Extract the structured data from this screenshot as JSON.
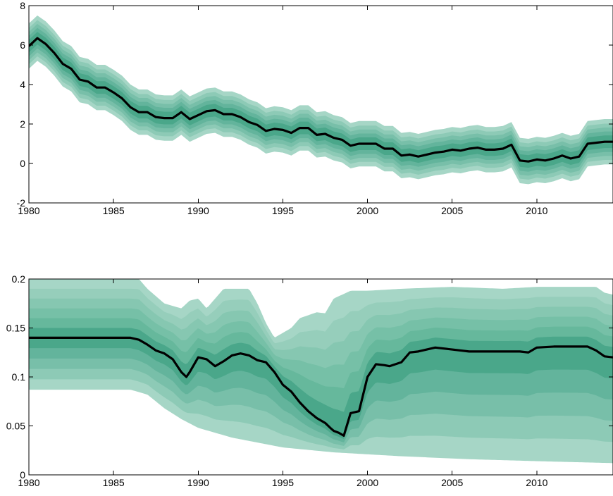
{
  "chart_data": [
    {
      "type": "area",
      "xlim": [
        1980,
        2014.5
      ],
      "ylim": [
        -2,
        8
      ],
      "x_ticks": [
        1980,
        1985,
        1990,
        1995,
        2000,
        2005,
        2010
      ],
      "y_ticks": [
        -2,
        0,
        2,
        4,
        6,
        8
      ],
      "band_halfwidths": [
        0.32,
        0.52,
        0.72,
        0.92,
        1.15
      ],
      "median": {
        "x": [
          1980,
          1980.5,
          1981,
          1981.5,
          1982,
          1982.5,
          1983,
          1983.5,
          1984,
          1984.5,
          1985,
          1985.5,
          1986,
          1986.5,
          1987,
          1987.5,
          1988,
          1988.5,
          1989,
          1989.5,
          1990,
          1990.5,
          1991,
          1991.5,
          1992,
          1992.5,
          1993,
          1993.5,
          1994,
          1994.5,
          1995,
          1995.5,
          1996,
          1996.5,
          1997,
          1997.5,
          1998,
          1998.5,
          1999,
          1999.5,
          2000,
          2000.5,
          2001,
          2001.5,
          2002,
          2002.5,
          2003,
          2003.5,
          2004,
          2004.5,
          2005,
          2005.5,
          2006,
          2006.5,
          2007,
          2007.5,
          2008,
          2008.5,
          2009,
          2009.5,
          2010,
          2010.5,
          2011,
          2011.5,
          2012,
          2012.5,
          2013,
          2013.5,
          2014,
          2014.5
        ],
        "y": [
          5.95,
          6.35,
          6.05,
          5.6,
          5.05,
          4.8,
          4.25,
          4.15,
          3.85,
          3.85,
          3.6,
          3.3,
          2.85,
          2.6,
          2.6,
          2.35,
          2.3,
          2.3,
          2.6,
          2.25,
          2.45,
          2.65,
          2.7,
          2.5,
          2.5,
          2.35,
          2.1,
          1.95,
          1.65,
          1.75,
          1.7,
          1.55,
          1.8,
          1.8,
          1.45,
          1.5,
          1.3,
          1.2,
          0.9,
          1.0,
          1.0,
          1.0,
          0.75,
          0.75,
          0.4,
          0.45,
          0.35,
          0.45,
          0.55,
          0.6,
          0.7,
          0.65,
          0.75,
          0.8,
          0.7,
          0.7,
          0.75,
          0.95,
          0.15,
          0.1,
          0.2,
          0.15,
          0.25,
          0.4,
          0.25,
          0.35,
          1.0,
          1.05,
          1.1,
          1.1
        ]
      }
    },
    {
      "type": "area",
      "xlim": [
        1980,
        2014.5
      ],
      "ylim": [
        0,
        0.2
      ],
      "x_ticks": [
        1980,
        1985,
        1990,
        1995,
        2000,
        2005,
        2010
      ],
      "y_ticks": [
        0,
        0.05,
        0.1,
        0.15,
        0.2
      ],
      "x_tick_labels": [
        "1980",
        "1985",
        "1990",
        "1995",
        "2000",
        "2005",
        "2010"
      ],
      "y_tick_labels": [
        "0",
        "0.05",
        "0.1",
        "0.15",
        "0.2"
      ],
      "lower_envelope": {
        "x": [
          1980,
          1986,
          1987,
          1988,
          1989,
          1990,
          1992,
          1995,
          1998,
          2002,
          2006,
          2010,
          2014.5
        ],
        "y": [
          0.087,
          0.087,
          0.082,
          0.068,
          0.057,
          0.048,
          0.038,
          0.028,
          0.023,
          0.019,
          0.016,
          0.014,
          0.012
        ]
      },
      "upper_envelope": {
        "x": [
          1980,
          1986,
          1986.5,
          1987,
          1988,
          1989,
          1989.5,
          1990,
          1990.5,
          1991,
          1991.5,
          1992,
          1993,
          1993.5,
          1994,
          1994.5,
          1995,
          1995.5,
          1996,
          1996.5,
          1997,
          1997.5,
          1998,
          1999,
          2000,
          2002,
          2005,
          2008,
          2010,
          2012,
          2013.5,
          2014,
          2014.5
        ],
        "y": [
          0.2,
          0.2,
          0.2,
          0.19,
          0.175,
          0.17,
          0.178,
          0.18,
          0.17,
          0.18,
          0.19,
          0.19,
          0.19,
          0.175,
          0.155,
          0.14,
          0.145,
          0.15,
          0.16,
          0.163,
          0.166,
          0.165,
          0.18,
          0.188,
          0.188,
          0.19,
          0.192,
          0.19,
          0.192,
          0.192,
          0.192,
          0.186,
          0.184
        ]
      },
      "median": {
        "x": [
          1980,
          1986,
          1986.5,
          1987,
          1987.5,
          1988,
          1988.5,
          1989,
          1989.3,
          1989.5,
          1990,
          1990.5,
          1991,
          1991.5,
          1992,
          1992.5,
          1993,
          1993.5,
          1994,
          1994.5,
          1995,
          1995.5,
          1996,
          1996.5,
          1997,
          1997.5,
          1997.8,
          1998,
          1998.3,
          1998.6,
          1999,
          1999.5,
          2000,
          2000.5,
          2001,
          2001.3,
          2002,
          2002.5,
          2003,
          2004,
          2005,
          2006,
          2007,
          2008,
          2009,
          2009.5,
          2010,
          2011,
          2012,
          2013,
          2013.5,
          2014,
          2014.5
        ],
        "y": [
          0.14,
          0.14,
          0.138,
          0.133,
          0.127,
          0.124,
          0.118,
          0.105,
          0.1,
          0.105,
          0.12,
          0.118,
          0.111,
          0.116,
          0.122,
          0.124,
          0.122,
          0.117,
          0.115,
          0.105,
          0.092,
          0.085,
          0.074,
          0.065,
          0.058,
          0.053,
          0.048,
          0.045,
          0.043,
          0.04,
          0.063,
          0.065,
          0.1,
          0.113,
          0.112,
          0.111,
          0.115,
          0.125,
          0.126,
          0.13,
          0.128,
          0.126,
          0.126,
          0.126,
          0.126,
          0.125,
          0.13,
          0.131,
          0.131,
          0.131,
          0.127,
          0.121,
          0.12
        ]
      }
    }
  ],
  "colors": {
    "median": "#000000",
    "band_top_ramp": [
      "#a6d6c6",
      "#96cebb",
      "#86c7b1",
      "#76c0a7",
      "#66b89c",
      "#4aa78a"
    ],
    "band_bottom_ramp": [
      "#a6d6c6",
      "#8dcab6",
      "#78bfa9",
      "#63b49c",
      "#4aa78a"
    ]
  }
}
